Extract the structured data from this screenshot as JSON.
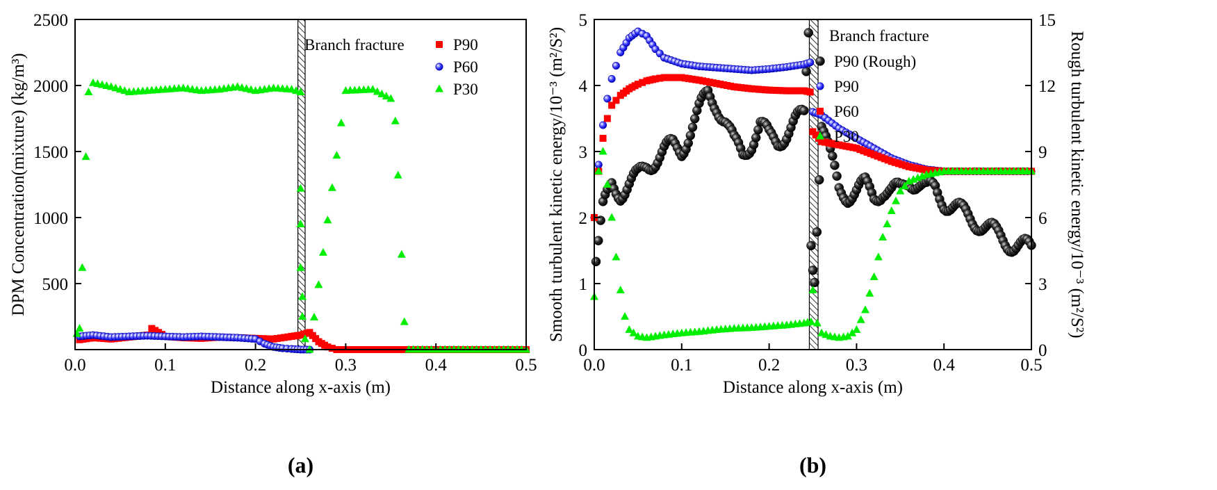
{
  "chart_data": [
    {
      "type": "scatter",
      "panel_label": "(a)",
      "xlabel": "Distance along x-axis (m)",
      "ylabel": "DPM Concentration(mixture)  (kg/m³)",
      "xlim": [
        0,
        0.5
      ],
      "ylim": [
        0,
        2500
      ],
      "xticks": [
        "0.0",
        "0.1",
        "0.2",
        "0.3",
        "0.4",
        "0.5"
      ],
      "yticks": [
        "500",
        "1000",
        "1500",
        "2000",
        "2500"
      ],
      "annotation": "Branch fracture",
      "fracture_band": [
        0.247,
        0.255
      ],
      "legend": [
        "P90",
        "P60",
        "P30"
      ],
      "series": [
        {
          "name": "P90",
          "color": "#ff0000",
          "marker": "square",
          "x": [
            0.005,
            0.02,
            0.04,
            0.06,
            0.08,
            0.085,
            0.1,
            0.12,
            0.14,
            0.16,
            0.18,
            0.2,
            0.22,
            0.24,
            0.25,
            0.26,
            0.27,
            0.28,
            0.29,
            0.3,
            0.35,
            0.4,
            0.45,
            0.5
          ],
          "y": [
            75,
            90,
            80,
            95,
            110,
            160,
            100,
            90,
            85,
            95,
            90,
            85,
            80,
            100,
            110,
            130,
            60,
            20,
            0,
            0,
            0,
            0,
            0,
            0
          ]
        },
        {
          "name": "P60",
          "color": "#0000ff",
          "marker": "circle",
          "x": [
            0.005,
            0.02,
            0.04,
            0.06,
            0.08,
            0.1,
            0.12,
            0.14,
            0.16,
            0.18,
            0.2,
            0.21,
            0.22,
            0.23,
            0.24,
            0.25,
            0.26
          ],
          "y": [
            100,
            110,
            95,
            100,
            105,
            100,
            95,
            100,
            95,
            90,
            80,
            45,
            20,
            10,
            5,
            0,
            0
          ]
        },
        {
          "name": "P30",
          "color": "#00ee00",
          "marker": "triangle",
          "x": [
            0.002,
            0.005,
            0.008,
            0.012,
            0.015,
            0.02,
            0.04,
            0.06,
            0.08,
            0.1,
            0.12,
            0.14,
            0.16,
            0.18,
            0.2,
            0.22,
            0.24,
            0.25,
            0.25,
            0.25,
            0.25,
            0.252,
            0.252,
            0.255,
            0.26,
            0.3,
            0.33,
            0.35,
            0.355,
            0.358,
            0.362,
            0.365,
            0.37,
            0.4,
            0.45,
            0.5
          ],
          "y": [
            120,
            160,
            620,
            1460,
            1950,
            2020,
            1990,
            1950,
            1960,
            1970,
            1980,
            1960,
            1970,
            1990,
            1960,
            1980,
            1970,
            1950,
            1220,
            950,
            620,
            400,
            250,
            80,
            0,
            1960,
            1970,
            1900,
            1730,
            1320,
            720,
            210,
            0,
            0,
            0,
            0
          ]
        }
      ]
    },
    {
      "type": "scatter",
      "panel_label": "(b)",
      "xlabel": "Distance along x-axis (m)",
      "ylabel": "Smooth turbulent kinetic energy/10⁻³ (m²/S²)",
      "y2label": "Rough turbulent kinetic energy/10⁻³ (m²/S²)",
      "xlim": [
        0,
        0.5
      ],
      "ylim": [
        0,
        5
      ],
      "y2lim": [
        0,
        15
      ],
      "xticks": [
        "0.0",
        "0.1",
        "0.2",
        "0.3",
        "0.4",
        "0.5"
      ],
      "yticks": [
        "0",
        "1",
        "2",
        "3",
        "4",
        "5"
      ],
      "y2ticks": [
        "0",
        "3",
        "6",
        "9",
        "12",
        "15"
      ],
      "annotation": "Branch fracture",
      "fracture_band": [
        0.246,
        0.256
      ],
      "legend": [
        "P90 (Rough)",
        "P90",
        "P60",
        "P30"
      ],
      "series": [
        {
          "name": "P90 (Rough)",
          "color": "#1a1a1a",
          "marker": "sphere",
          "axis": "right",
          "x": [
            0.002,
            0.01,
            0.02,
            0.03,
            0.04,
            0.05,
            0.06,
            0.07,
            0.08,
            0.09,
            0.1,
            0.11,
            0.12,
            0.13,
            0.14,
            0.15,
            0.16,
            0.17,
            0.18,
            0.19,
            0.2,
            0.21,
            0.22,
            0.23,
            0.24,
            0.245,
            0.248,
            0.25,
            0.252,
            0.26,
            0.27,
            0.28,
            0.29,
            0.3,
            0.31,
            0.32,
            0.33,
            0.34,
            0.35,
            0.36,
            0.37,
            0.38,
            0.39,
            0.4,
            0.42,
            0.44,
            0.46,
            0.48,
            0.5
          ],
          "y": [
            4.0,
            6.3,
            7.5,
            7.2,
            7.5,
            7.8,
            8.4,
            8.7,
            9.0,
            9.2,
            9.1,
            10.0,
            10.8,
            11.6,
            11.2,
            10.4,
            9.3,
            8.9,
            9.5,
            10.2,
            9.6,
            9.5,
            9.9,
            10.3,
            10.6,
            14.5,
            5.0,
            4.0,
            3.5,
            10.3,
            8.7,
            7.3,
            7.1,
            7.2,
            7.4,
            7.0,
            7.3,
            7.1,
            7.2,
            7.8,
            7.6,
            7.2,
            7.3,
            6.8,
            6.2,
            5.8,
            5.2,
            4.8,
            4.5
          ]
        },
        {
          "name": "P90",
          "color": "#0000ff",
          "marker": "circle",
          "x": [
            0.0,
            0.005,
            0.01,
            0.015,
            0.02,
            0.03,
            0.04,
            0.05,
            0.06,
            0.07,
            0.08,
            0.1,
            0.12,
            0.14,
            0.16,
            0.18,
            0.2,
            0.22,
            0.24,
            0.247,
            0.25,
            0.26,
            0.28,
            0.3,
            0.32,
            0.34,
            0.36,
            0.38,
            0.4,
            0.45,
            0.5
          ],
          "y": [
            2.0,
            2.8,
            3.4,
            3.8,
            4.1,
            4.5,
            4.72,
            4.82,
            4.75,
            4.55,
            4.42,
            4.33,
            4.29,
            4.27,
            4.25,
            4.23,
            4.25,
            4.28,
            4.32,
            4.35,
            3.6,
            3.55,
            3.35,
            3.2,
            3.05,
            2.9,
            2.8,
            2.73,
            2.7,
            2.7,
            2.7
          ]
        },
        {
          "name": "P60",
          "color": "#ff0000",
          "marker": "square",
          "x": [
            0.0,
            0.005,
            0.01,
            0.015,
            0.02,
            0.03,
            0.04,
            0.05,
            0.06,
            0.07,
            0.08,
            0.1,
            0.12,
            0.14,
            0.16,
            0.18,
            0.2,
            0.22,
            0.24,
            0.247,
            0.25,
            0.26,
            0.28,
            0.3,
            0.32,
            0.34,
            0.36,
            0.38,
            0.4,
            0.45,
            0.5
          ],
          "y": [
            2.0,
            2.7,
            3.2,
            3.5,
            3.7,
            3.85,
            3.95,
            4.02,
            4.07,
            4.1,
            4.12,
            4.12,
            4.08,
            4.03,
            3.98,
            3.95,
            3.93,
            3.92,
            3.92,
            3.9,
            3.3,
            3.15,
            3.1,
            3.05,
            2.95,
            2.85,
            2.77,
            2.72,
            2.7,
            2.7,
            2.7
          ]
        },
        {
          "name": "P30",
          "color": "#00ee00",
          "marker": "triangle",
          "x": [
            0.0,
            0.005,
            0.01,
            0.015,
            0.02,
            0.025,
            0.03,
            0.035,
            0.04,
            0.05,
            0.06,
            0.07,
            0.08,
            0.1,
            0.12,
            0.14,
            0.16,
            0.18,
            0.2,
            0.22,
            0.24,
            0.248,
            0.25,
            0.255,
            0.26,
            0.27,
            0.28,
            0.29,
            0.3,
            0.31,
            0.32,
            0.33,
            0.34,
            0.35,
            0.36,
            0.38,
            0.4,
            0.45,
            0.5
          ],
          "y": [
            0.8,
            2.7,
            3.0,
            2.5,
            2.0,
            1.4,
            0.9,
            0.5,
            0.3,
            0.2,
            0.18,
            0.2,
            0.22,
            0.25,
            0.27,
            0.3,
            0.32,
            0.33,
            0.35,
            0.37,
            0.4,
            0.42,
            0.9,
            0.4,
            0.25,
            0.2,
            0.18,
            0.2,
            0.3,
            0.6,
            1.1,
            1.7,
            2.1,
            2.4,
            2.55,
            2.65,
            2.7,
            2.7,
            2.7
          ]
        }
      ]
    }
  ]
}
